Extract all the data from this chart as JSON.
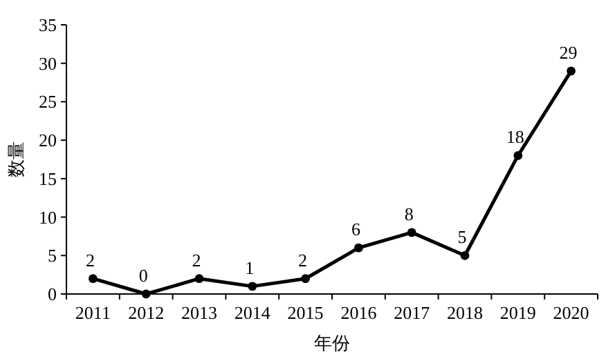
{
  "chart_data": {
    "type": "line",
    "xlabel": "年份",
    "ylabel": "数量",
    "categories": [
      "2011",
      "2012",
      "2013",
      "2014",
      "2015",
      "2016",
      "2017",
      "2018",
      "2019",
      "2020"
    ],
    "series": [
      {
        "color": "#000000",
        "values": [
          2,
          0,
          2,
          1,
          2,
          6,
          8,
          5,
          18,
          29
        ]
      }
    ],
    "ylim": [
      0,
      35
    ],
    "yticks": [
      0,
      5,
      10,
      15,
      20,
      25,
      30,
      35
    ],
    "marker": "circle",
    "line_style": "solid",
    "data_labels": true,
    "grid": false
  }
}
